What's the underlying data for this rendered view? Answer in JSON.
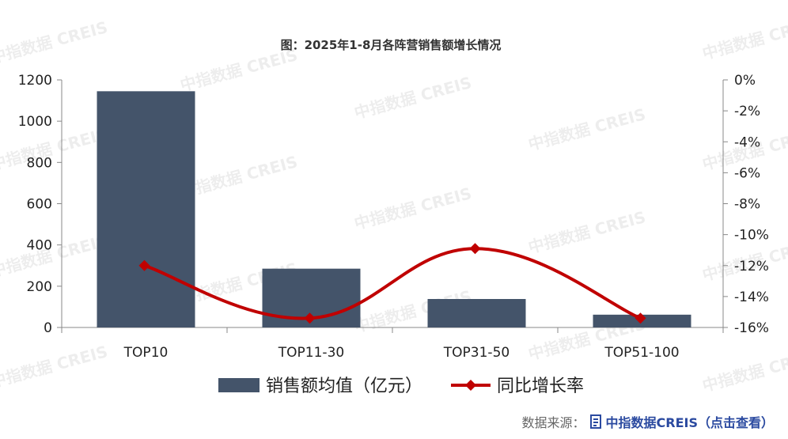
{
  "chart_data": {
    "type": "bar+line",
    "title": "图：2025年1-8月各阵营销售额增长情况",
    "categories": [
      "TOP10",
      "TOP11-30",
      "TOP31-50",
      "TOP51-100"
    ],
    "series": [
      {
        "name": "销售额均值（亿元）",
        "type": "bar",
        "axis": "left",
        "values": [
          1145,
          285,
          138,
          62
        ],
        "color": "#44546a"
      },
      {
        "name": "同比增长率",
        "type": "line",
        "axis": "right",
        "values": [
          -12.0,
          -15.4,
          -10.9,
          -15.4
        ],
        "color": "#c00000"
      }
    ],
    "y_left": {
      "ticks": [
        0,
        200,
        400,
        600,
        800,
        1000,
        1200
      ],
      "ylim": [
        0,
        1200
      ]
    },
    "y_right": {
      "ticks": [
        "0%",
        "-2%",
        "-4%",
        "-6%",
        "-8%",
        "-10%",
        "-12%",
        "-14%",
        "-16%"
      ],
      "ylim": [
        -16,
        0
      ]
    },
    "legend": {
      "placement": "bottom"
    },
    "watermark": "中指数据 CREIS"
  },
  "source": {
    "label": "数据来源：",
    "link": "中指数据CREIS（点击查看）"
  },
  "colors": {
    "bar": "#44546a",
    "line": "#c00000",
    "axis": "#888888",
    "link": "#2b4aa0"
  }
}
